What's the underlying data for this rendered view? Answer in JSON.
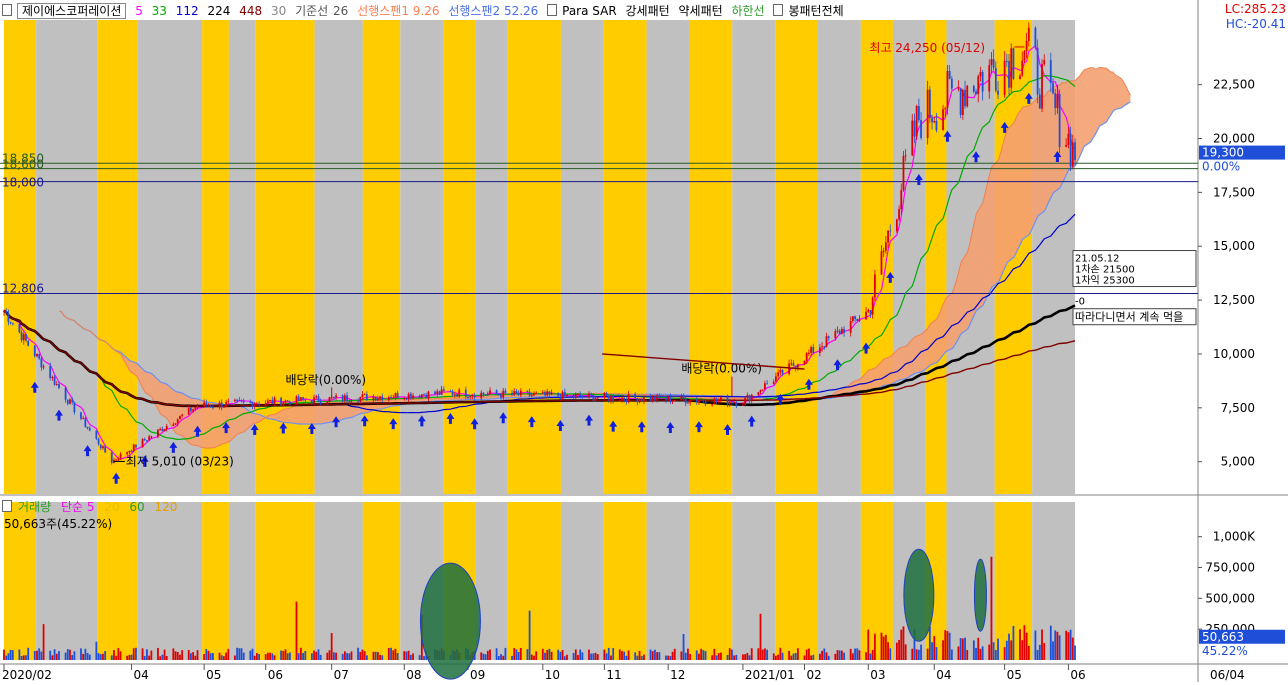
{
  "header": {
    "stock_name": "제이에스코퍼레이션",
    "ma_periods": [
      "5",
      "33",
      "112",
      "224",
      "448"
    ],
    "ma_colors": [
      "#ff00ff",
      "#00aa00",
      "#0000cc",
      "#000000",
      "#800000"
    ],
    "ichimoku_period": "30",
    "kijun_label": "기준선",
    "kijun_value": "26",
    "span1_label": "선행스팬1 9.26",
    "span2_label": "선행스팬2 52.26",
    "parasar_label": "Para SAR",
    "strong_pattern": "강세패턴",
    "weak_pattern": "약세패턴",
    "lower_line": "하한선",
    "candle_pattern_all": "봉패턴전체"
  },
  "right_top": {
    "lc": "LC:285.23",
    "hc": "HC:-20.41"
  },
  "price_axis": {
    "ticks": [
      "22,500",
      "20,000",
      "17,500",
      "15,000",
      "12,500",
      "10,000",
      "7,500",
      "5,000"
    ],
    "current_price": "19,300",
    "current_pct": "0.00%"
  },
  "volume_axis": {
    "ticks": [
      "1,000K",
      "750,000",
      "500,000",
      "250,000"
    ],
    "current_volume": "50,663",
    "current_pct": "45.22%"
  },
  "x_axis": {
    "ticks": [
      "2020/02",
      "04",
      "05",
      "06",
      "07",
      "08",
      "09",
      "10",
      "11",
      "12",
      "2021/01",
      "02",
      "03",
      "04",
      "05",
      "06"
    ],
    "end_label": "06/04"
  },
  "annotations": {
    "high": "최고 24,250 (05/12)",
    "low": "최저 5,010 (03/23)",
    "dividend1": "배당락(0.00%)",
    "dividend2": "배당락(0.00%)",
    "hline_a": "18,850",
    "hline_b": "18,600",
    "hline_c": "18,000",
    "hline_d": "12,806",
    "box_date": "21.05.12",
    "box_buy": "1차손 21500",
    "box_profit": "1차익 25300",
    "dash": "-0",
    "follow_note": "따라다니면서 계속 먹을"
  },
  "volume_legend": {
    "volume": "거래량",
    "simple": "단순 5",
    "p20": "20",
    "p60": "60",
    "p120": "120",
    "current": "50,663주(45.22%)"
  },
  "chart_data": {
    "type": "candlestick",
    "title": "제이에스코퍼레이션",
    "ylim": [
      3500,
      25500
    ],
    "volume_ylim": [
      0,
      1200000
    ],
    "x_range": [
      "2020-02-03",
      "2021-06-04"
    ],
    "key_prices": [
      {
        "date": "2020-02-03",
        "close": 12000
      },
      {
        "date": "2020-03-23",
        "close": 5010,
        "label": "최저 5,010 (03/23)"
      },
      {
        "date": "2020-05-01",
        "close": 7600
      },
      {
        "date": "2020-08-24",
        "close": 8200
      },
      {
        "date": "2021-01-04",
        "close": 7800
      },
      {
        "date": "2021-03-02",
        "close": 12000
      },
      {
        "date": "2021-03-25",
        "close": 21000
      },
      {
        "date": "2021-05-12",
        "close": 24250,
        "label": "최고 24,250 (05/12)"
      },
      {
        "date": "2021-06-04",
        "close": 19300
      }
    ],
    "series": [
      {
        "name": "5",
        "color": "#ff00ff"
      },
      {
        "name": "33",
        "color": "#00aa00"
      },
      {
        "name": "112",
        "color": "#0000cc"
      },
      {
        "name": "224",
        "color": "#000000"
      },
      {
        "name": "448",
        "color": "#800000"
      }
    ],
    "horizontal_lines": [
      18850,
      18600,
      18000,
      12806
    ]
  }
}
